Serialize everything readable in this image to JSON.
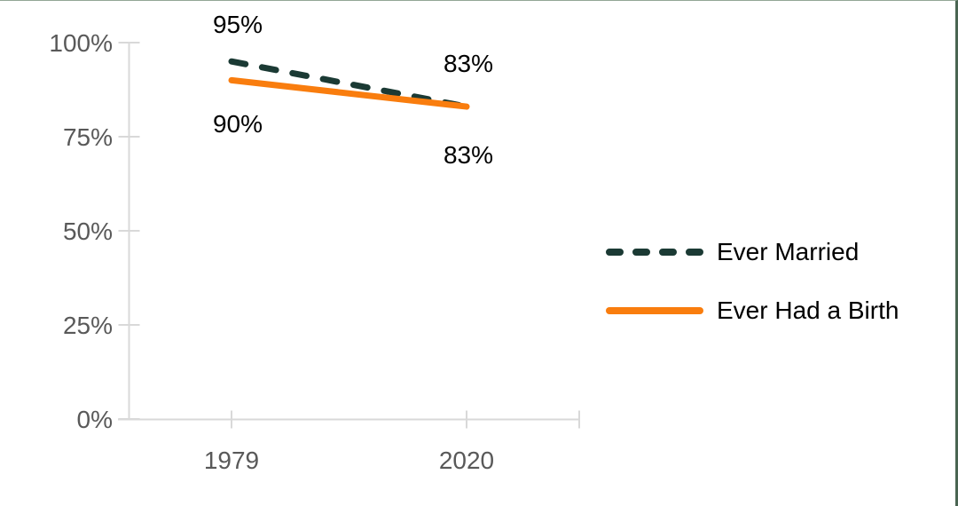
{
  "chart_data": {
    "type": "line",
    "title": "",
    "xlabel": "",
    "ylabel": "",
    "x_categories": [
      "1979",
      "2020"
    ],
    "y_tick_labels": [
      "0%",
      "25%",
      "50%",
      "75%",
      "100%"
    ],
    "ylim": [
      0,
      100
    ],
    "grid": false,
    "legend_position": "right",
    "series": [
      {
        "name": "Ever Married",
        "values": [
          95,
          83
        ],
        "point_labels": [
          "95%",
          "83%"
        ],
        "line_style": "dashed",
        "color": "#1B3A34"
      },
      {
        "name": "Ever Had a Birth",
        "values": [
          90,
          83
        ],
        "point_labels": [
          "90%",
          "83%"
        ],
        "line_style": "solid",
        "color": "#F97D0E"
      }
    ],
    "colors": {
      "axis": "#D9D9D9",
      "tick_text": "#595959",
      "data_label_text": "#000000",
      "legend_text": "#000000"
    }
  }
}
